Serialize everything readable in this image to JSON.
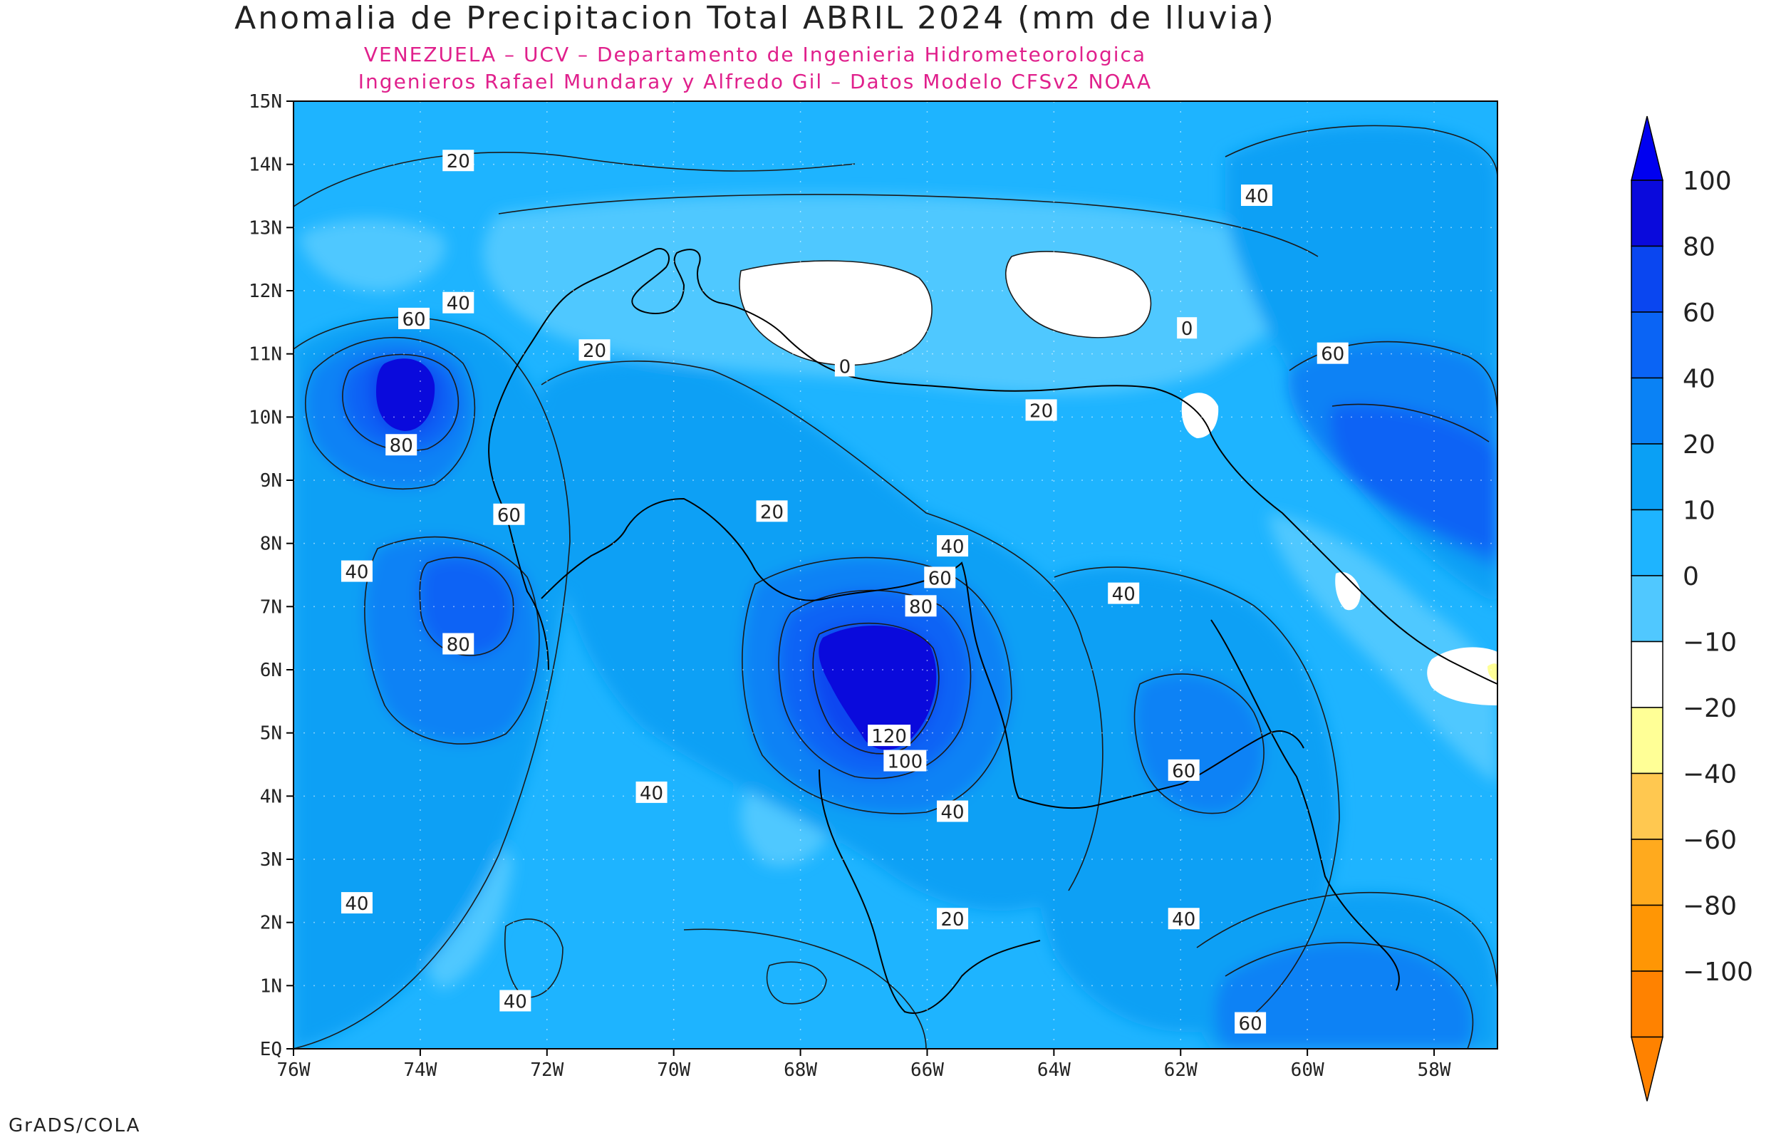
{
  "title": "Anomalia de Precipitacion Total ABRIL 2024 (mm de lluvia)",
  "subtitle_1": "VENEZUELA – UCV – Departamento de Ingenieria Hidrometeorologica",
  "subtitle_2": "Ingenieros Rafael Mundaray y Alfredo Gil – Datos Modelo CFSv2 NOAA",
  "footer": "GrADS/COLA",
  "map": {
    "lon_range": [
      -76,
      -57
    ],
    "lat_range": [
      0,
      15
    ],
    "x_ticks": [
      {
        "lon": -76,
        "label": "76W"
      },
      {
        "lon": -74,
        "label": "74W"
      },
      {
        "lon": -72,
        "label": "72W"
      },
      {
        "lon": -70,
        "label": "70W"
      },
      {
        "lon": -68,
        "label": "68W"
      },
      {
        "lon": -66,
        "label": "66W"
      },
      {
        "lon": -64,
        "label": "64W"
      },
      {
        "lon": -62,
        "label": "62W"
      },
      {
        "lon": -60,
        "label": "60W"
      },
      {
        "lon": -58,
        "label": "58W"
      }
    ],
    "y_ticks": [
      {
        "lat": 0,
        "label": "EQ"
      },
      {
        "lat": 1,
        "label": "1N"
      },
      {
        "lat": 2,
        "label": "2N"
      },
      {
        "lat": 3,
        "label": "3N"
      },
      {
        "lat": 4,
        "label": "4N"
      },
      {
        "lat": 5,
        "label": "5N"
      },
      {
        "lat": 6,
        "label": "6N"
      },
      {
        "lat": 7,
        "label": "7N"
      },
      {
        "lat": 8,
        "label": "8N"
      },
      {
        "lat": 9,
        "label": "9N"
      },
      {
        "lat": 10,
        "label": "10N"
      },
      {
        "lat": 11,
        "label": "11N"
      },
      {
        "lat": 12,
        "label": "12N"
      },
      {
        "lat": 13,
        "label": "13N"
      },
      {
        "lat": 14,
        "label": "14N"
      },
      {
        "lat": 15,
        "label": "15N"
      }
    ],
    "contour_labels": [
      {
        "lon": -73.4,
        "lat": 14.05,
        "label": "20"
      },
      {
        "lon": -73.4,
        "lat": 11.8,
        "label": "40"
      },
      {
        "lon": -74.1,
        "lat": 11.55,
        "label": "60"
      },
      {
        "lon": -74.3,
        "lat": 9.55,
        "label": "80"
      },
      {
        "lon": -71.25,
        "lat": 11.05,
        "label": "20"
      },
      {
        "lon": -67.3,
        "lat": 10.8,
        "label": "0"
      },
      {
        "lon": -61.9,
        "lat": 11.4,
        "label": "0"
      },
      {
        "lon": -64.2,
        "lat": 10.1,
        "label": "20"
      },
      {
        "lon": -60.8,
        "lat": 13.5,
        "label": "40"
      },
      {
        "lon": -59.6,
        "lat": 11.0,
        "label": "60"
      },
      {
        "lon": -72.6,
        "lat": 8.45,
        "label": "60"
      },
      {
        "lon": -75.0,
        "lat": 7.55,
        "label": "40"
      },
      {
        "lon": -73.4,
        "lat": 6.4,
        "label": "80"
      },
      {
        "lon": -68.45,
        "lat": 8.5,
        "label": "20"
      },
      {
        "lon": -65.6,
        "lat": 7.95,
        "label": "40"
      },
      {
        "lon": -65.8,
        "lat": 7.45,
        "label": "60"
      },
      {
        "lon": -66.1,
        "lat": 7.0,
        "label": "80"
      },
      {
        "lon": -66.6,
        "lat": 4.95,
        "label": "120"
      },
      {
        "lon": -66.35,
        "lat": 4.55,
        "label": "100"
      },
      {
        "lon": -62.9,
        "lat": 7.2,
        "label": "40"
      },
      {
        "lon": -61.95,
        "lat": 4.4,
        "label": "60"
      },
      {
        "lon": -70.35,
        "lat": 4.05,
        "label": "40"
      },
      {
        "lon": -65.6,
        "lat": 3.75,
        "label": "40"
      },
      {
        "lon": -65.6,
        "lat": 2.05,
        "label": "20"
      },
      {
        "lon": -75.0,
        "lat": 2.3,
        "label": "40"
      },
      {
        "lon": -72.5,
        "lat": 0.75,
        "label": "40"
      },
      {
        "lon": -61.95,
        "lat": 2.05,
        "label": "40"
      },
      {
        "lon": -60.9,
        "lat": 0.4,
        "label": "60"
      }
    ]
  },
  "colorbar": {
    "labels": [
      "100",
      "80",
      "60",
      "40",
      "20",
      "10",
      "0",
      "−10",
      "−20",
      "−40",
      "−60",
      "−80",
      "−100"
    ],
    "colors": [
      "#0a0adc",
      "#0a46f0",
      "#0a64f5",
      "#0a82f5",
      "#0aa0f5",
      "#1eb4ff",
      "#50c8ff",
      "#ffffff",
      "#ffff96",
      "#ffc850",
      "#ffaa1e",
      "#ff9605",
      "#ff8200"
    ],
    "upper_triangle_color": "#0000f0",
    "lower_triangle_color": "#ff8200"
  },
  "field_colors": {
    "c_neg10": "#ffff96",
    "c_0": "#ffffff",
    "c_10": "#50c8ff",
    "c_20": "#1eb4ff",
    "c_40": "#0aa0f5",
    "c_60": "#0a82f5",
    "c_80": "#0a64f5",
    "c_100": "#0a46f0",
    "c_120": "#0a0adc",
    "coast": "#000000",
    "contour": "#1a1a1a"
  }
}
